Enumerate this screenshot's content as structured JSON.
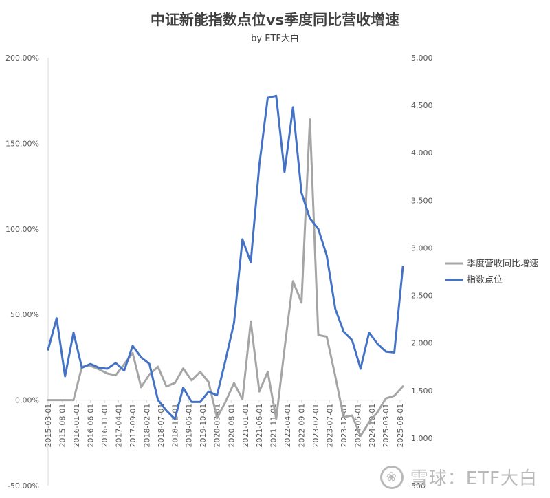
{
  "chart_data": {
    "type": "line",
    "title": "中证新能指数点位vs季度同比营收增速",
    "subtitle": "by ETF大白",
    "categories_shown": [
      "2015-03-01",
      "2015-08-01",
      "2016-01-01",
      "2016-06-01",
      "2016-11-01",
      "2017-04-01",
      "2017-09-01",
      "2018-02-01",
      "2018-07-01",
      "2018-12-01",
      "2019-05-01",
      "2019-10-01",
      "2020-03-01",
      "2020-08-01",
      "2021-01-01",
      "2021-06-01",
      "2021-11-01",
      "2022-04-01",
      "2022-09-01",
      "2023-02-01",
      "2023-07-01",
      "2023-12-01",
      "2024-05-01",
      "2024-10-01",
      "2025-03-01",
      "2025-08-01"
    ],
    "x": [
      "2015-03-01",
      "2015-06-01",
      "2015-09-01",
      "2015-12-01",
      "2016-03-01",
      "2016-06-01",
      "2016-09-01",
      "2016-12-01",
      "2017-03-01",
      "2017-06-01",
      "2017-09-01",
      "2017-12-01",
      "2018-03-01",
      "2018-06-01",
      "2018-09-01",
      "2018-12-01",
      "2019-03-01",
      "2019-06-01",
      "2019-09-01",
      "2019-12-01",
      "2020-03-01",
      "2020-06-01",
      "2020-09-01",
      "2020-12-01",
      "2021-03-01",
      "2021-06-01",
      "2021-09-01",
      "2021-12-01",
      "2022-03-01",
      "2022-06-01",
      "2022-09-01",
      "2022-12-01",
      "2023-03-01",
      "2023-06-01",
      "2023-09-01",
      "2023-12-01",
      "2024-03-01",
      "2024-06-01",
      "2024-09-01",
      "2024-12-01",
      "2025-03-01",
      "2025-06-01",
      "2025-09-01"
    ],
    "series": [
      {
        "name": "季度营收同比增速",
        "axis": "left",
        "color": "#a5a5a5",
        "values": [
          0.0,
          0.0,
          0.0,
          0.0,
          19.5,
          20.0,
          18.0,
          15.5,
          14.5,
          21.0,
          27.5,
          7.5,
          15.0,
          19.5,
          8.0,
          10.0,
          18.5,
          11.5,
          16.5,
          10.5,
          -10.5,
          -1.0,
          10.0,
          0.5,
          46.0,
          5.0,
          16.5,
          -11.0,
          30.0,
          69.5,
          57.0,
          164.0,
          38.0,
          37.0,
          14.0,
          -10.0,
          -9.0,
          -21.0,
          -13.0,
          -7.0,
          1.0,
          2.5,
          8.0
        ]
      },
      {
        "name": "指数点位",
        "axis": "right",
        "color": "#4472c4",
        "values": [
          1930,
          2260,
          1650,
          2110,
          1740,
          1780,
          1740,
          1730,
          1790,
          1710,
          1970,
          1850,
          1780,
          1400,
          1290,
          1200,
          1530,
          1380,
          1380,
          1490,
          1450,
          1820,
          2210,
          3090,
          2850,
          3870,
          4580,
          4600,
          3800,
          4480,
          3580,
          3310,
          3200,
          2920,
          2360,
          2120,
          2030,
          1730,
          2110,
          1990,
          1910,
          1900,
          2800
        ]
      }
    ],
    "y_left": {
      "min": -50,
      "max": 200,
      "step": 50,
      "ticks": [
        "-50.00%",
        "0.00%",
        "50.00%",
        "100.00%",
        "150.00%",
        "200.00%"
      ]
    },
    "y_right": {
      "min": 500,
      "max": 5000,
      "step": 500,
      "ticks": [
        "500",
        "1,000",
        "1,500",
        "2,000",
        "2,500",
        "3,000",
        "3,500",
        "4,000",
        "4,500",
        "5,000"
      ]
    },
    "grid": false,
    "legend_position": "right"
  },
  "watermark": {
    "logo_glyph": "❀",
    "text": "雪球：ETF大白"
  }
}
